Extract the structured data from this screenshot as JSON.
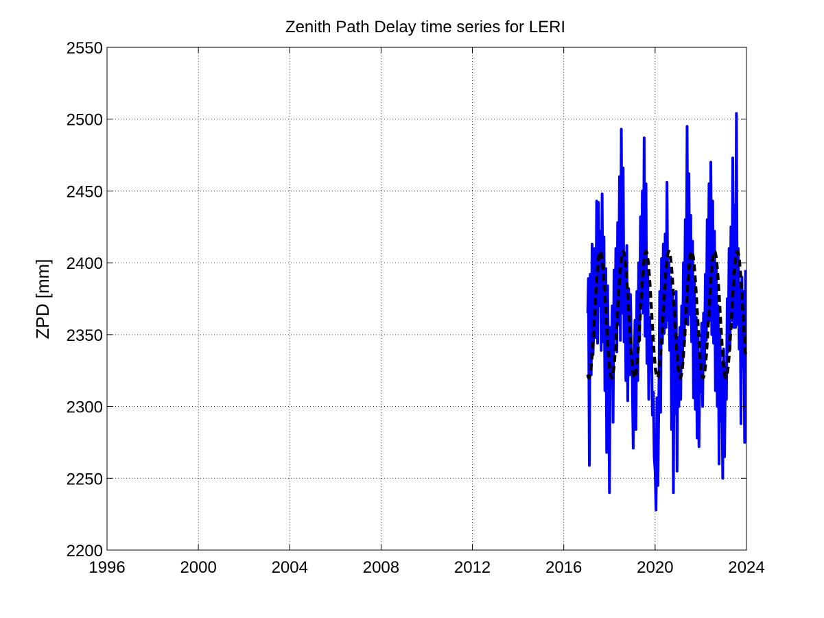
{
  "chart_data": {
    "type": "line",
    "title": "Zenith Path Delay time series for LERI",
    "xlabel": "",
    "ylabel": "ZPD [mm]",
    "xlim": [
      1996,
      2024
    ],
    "ylim": [
      2200,
      2550
    ],
    "xticks": [
      1996,
      2000,
      2004,
      2008,
      2012,
      2016,
      2020,
      2024
    ],
    "yticks": [
      2200,
      2250,
      2300,
      2350,
      2400,
      2450,
      2500,
      2550
    ],
    "xtick_labels": [
      "1996",
      "2000",
      "2004",
      "2008",
      "2012",
      "2016",
      "2020",
      "2024"
    ],
    "ytick_labels": [
      "2200",
      "2250",
      "2300",
      "2350",
      "2400",
      "2450",
      "2500",
      "2550"
    ],
    "grid": true,
    "series": [
      {
        "style": "solid",
        "color": "#0000ff",
        "points": [
          [
            2017.05,
            2365
          ],
          [
            2017.08,
            2389
          ],
          [
            2017.12,
            2259
          ],
          [
            2017.16,
            2392
          ],
          [
            2017.2,
            2322
          ],
          [
            2017.24,
            2413
          ],
          [
            2017.28,
            2336
          ],
          [
            2017.32,
            2356
          ],
          [
            2017.36,
            2410
          ],
          [
            2017.4,
            2348
          ],
          [
            2017.44,
            2443
          ],
          [
            2017.48,
            2344
          ],
          [
            2017.52,
            2442
          ],
          [
            2017.56,
            2370
          ],
          [
            2017.6,
            2422
          ],
          [
            2017.64,
            2339
          ],
          [
            2017.68,
            2448
          ],
          [
            2017.72,
            2345
          ],
          [
            2017.76,
            2418
          ],
          [
            2017.8,
            2311
          ],
          [
            2017.84,
            2396
          ],
          [
            2017.88,
            2268
          ],
          [
            2017.92,
            2384
          ],
          [
            2017.96,
            2330
          ],
          [
            2018.0,
            2240
          ],
          [
            2018.04,
            2355
          ],
          [
            2018.08,
            2325
          ],
          [
            2018.12,
            2370
          ],
          [
            2018.16,
            2289
          ],
          [
            2018.2,
            2395
          ],
          [
            2018.24,
            2350
          ],
          [
            2018.28,
            2410
          ],
          [
            2018.32,
            2338
          ],
          [
            2018.36,
            2428
          ],
          [
            2018.4,
            2357
          ],
          [
            2018.44,
            2460
          ],
          [
            2018.48,
            2346
          ],
          [
            2018.52,
            2493
          ],
          [
            2018.56,
            2365
          ],
          [
            2018.6,
            2466
          ],
          [
            2018.64,
            2345
          ],
          [
            2018.68,
            2405
          ],
          [
            2018.72,
            2318
          ],
          [
            2018.76,
            2412
          ],
          [
            2018.8,
            2304
          ],
          [
            2018.84,
            2382
          ],
          [
            2018.88,
            2322
          ],
          [
            2018.92,
            2378
          ],
          [
            2018.96,
            2340
          ],
          [
            2019.0,
            2320
          ],
          [
            2019.04,
            2271
          ],
          [
            2019.08,
            2330
          ],
          [
            2019.12,
            2360
          ],
          [
            2019.16,
            2284
          ],
          [
            2019.2,
            2380
          ],
          [
            2019.24,
            2318
          ],
          [
            2019.28,
            2400
          ],
          [
            2019.32,
            2346
          ],
          [
            2019.36,
            2432
          ],
          [
            2019.4,
            2372
          ],
          [
            2019.44,
            2450
          ],
          [
            2019.48,
            2365
          ],
          [
            2019.52,
            2487
          ],
          [
            2019.56,
            2349
          ],
          [
            2019.6,
            2455
          ],
          [
            2019.64,
            2330
          ],
          [
            2019.68,
            2392
          ],
          [
            2019.72,
            2305
          ],
          [
            2019.76,
            2362
          ],
          [
            2019.8,
            2326
          ],
          [
            2019.84,
            2349
          ],
          [
            2019.88,
            2294
          ],
          [
            2019.92,
            2310
          ],
          [
            2019.96,
            2265
          ],
          [
            2020.0,
            2255
          ],
          [
            2020.04,
            2228
          ],
          [
            2020.08,
            2306
          ],
          [
            2020.12,
            2245
          ],
          [
            2020.16,
            2299
          ],
          [
            2020.2,
            2380
          ],
          [
            2020.24,
            2296
          ],
          [
            2020.28,
            2403
          ],
          [
            2020.32,
            2344
          ],
          [
            2020.36,
            2413
          ],
          [
            2020.4,
            2351
          ],
          [
            2020.44,
            2420
          ],
          [
            2020.48,
            2355
          ],
          [
            2020.52,
            2456
          ],
          [
            2020.56,
            2360
          ],
          [
            2020.6,
            2400
          ],
          [
            2020.64,
            2339
          ],
          [
            2020.68,
            2390
          ],
          [
            2020.72,
            2284
          ],
          [
            2020.76,
            2380
          ],
          [
            2020.8,
            2240
          ],
          [
            2020.84,
            2370
          ],
          [
            2020.88,
            2295
          ],
          [
            2020.92,
            2380
          ],
          [
            2020.96,
            2255
          ],
          [
            2021.0,
            2348
          ],
          [
            2021.04,
            2300
          ],
          [
            2021.08,
            2355
          ],
          [
            2021.12,
            2305
          ],
          [
            2021.16,
            2370
          ],
          [
            2021.2,
            2328
          ],
          [
            2021.24,
            2400
          ],
          [
            2021.28,
            2345
          ],
          [
            2021.32,
            2430
          ],
          [
            2021.36,
            2362
          ],
          [
            2021.4,
            2495
          ],
          [
            2021.44,
            2357
          ],
          [
            2021.48,
            2462
          ],
          [
            2021.52,
            2364
          ],
          [
            2021.56,
            2433
          ],
          [
            2021.6,
            2345
          ],
          [
            2021.64,
            2415
          ],
          [
            2021.68,
            2306
          ],
          [
            2021.72,
            2388
          ],
          [
            2021.76,
            2298
          ],
          [
            2021.8,
            2362
          ],
          [
            2021.84,
            2278
          ],
          [
            2021.88,
            2352
          ],
          [
            2021.92,
            2272
          ],
          [
            2021.96,
            2334
          ],
          [
            2022.0,
            2310
          ],
          [
            2022.04,
            2358
          ],
          [
            2022.08,
            2300
          ],
          [
            2022.12,
            2365
          ],
          [
            2022.16,
            2329
          ],
          [
            2022.2,
            2392
          ],
          [
            2022.24,
            2346
          ],
          [
            2022.28,
            2430
          ],
          [
            2022.32,
            2356
          ],
          [
            2022.36,
            2455
          ],
          [
            2022.4,
            2360
          ],
          [
            2022.44,
            2470
          ],
          [
            2022.48,
            2350
          ],
          [
            2022.52,
            2443
          ],
          [
            2022.56,
            2344
          ],
          [
            2022.6,
            2422
          ],
          [
            2022.64,
            2311
          ],
          [
            2022.68,
            2397
          ],
          [
            2022.72,
            2300
          ],
          [
            2022.76,
            2370
          ],
          [
            2022.8,
            2260
          ],
          [
            2022.84,
            2350
          ],
          [
            2022.88,
            2290
          ],
          [
            2022.92,
            2330
          ],
          [
            2022.96,
            2250
          ],
          [
            2023.0,
            2340
          ],
          [
            2023.04,
            2265
          ],
          [
            2023.08,
            2330
          ],
          [
            2023.12,
            2305
          ],
          [
            2023.16,
            2375
          ],
          [
            2023.2,
            2338
          ],
          [
            2023.24,
            2410
          ],
          [
            2023.28,
            2340
          ],
          [
            2023.32,
            2425
          ],
          [
            2023.36,
            2360
          ],
          [
            2023.4,
            2473
          ],
          [
            2023.44,
            2355
          ],
          [
            2023.48,
            2440
          ],
          [
            2023.52,
            2355
          ],
          [
            2023.56,
            2504
          ],
          [
            2023.6,
            2357
          ],
          [
            2023.64,
            2410
          ],
          [
            2023.68,
            2340
          ],
          [
            2023.72,
            2384
          ],
          [
            2023.76,
            2288
          ],
          [
            2023.8,
            2390
          ],
          [
            2023.84,
            2327
          ],
          [
            2023.88,
            2380
          ],
          [
            2023.92,
            2275
          ],
          [
            2023.96,
            2395
          ]
        ]
      },
      {
        "style": "dashed",
        "color": "#000000",
        "model": "annual_sinusoid",
        "x_range": [
          2017.05,
          2023.97
        ],
        "mean": 2364,
        "amplitude": 44,
        "peak_phase_year_fraction": 0.6
      }
    ]
  }
}
